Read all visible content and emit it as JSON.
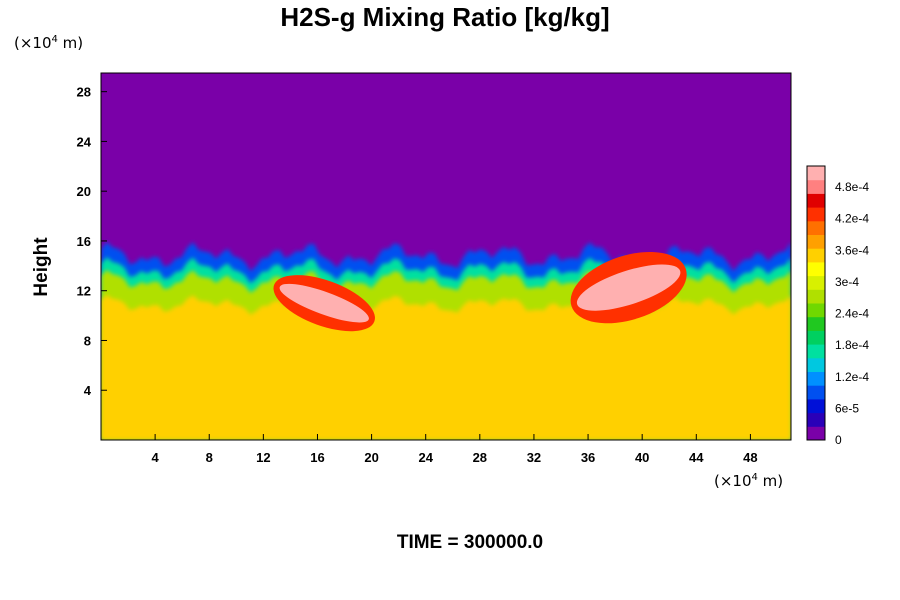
{
  "chart_data": {
    "type": "heatmap",
    "title": "H2S-g Mixing Ratio [kg/kg]",
    "ylabel": "Height",
    "y_unit_prefix": "(×10",
    "y_unit_exp": "4",
    "y_unit_suffix": " m)",
    "x_unit_prefix": "(×10",
    "x_unit_exp": "4",
    "x_unit_suffix": " m)",
    "x_ticks": [
      4,
      8,
      12,
      16,
      20,
      24,
      28,
      32,
      36,
      40,
      44,
      48
    ],
    "y_ticks": [
      4,
      8,
      12,
      16,
      20,
      24,
      28
    ],
    "xlim": [
      0,
      51
    ],
    "ylim": [
      0,
      29.5
    ],
    "time_label": "TIME = 300000.0",
    "colorbar": {
      "ticks": [
        {
          "label": "0",
          "value": 0
        },
        {
          "label": "6e-5",
          "value": 6e-05
        },
        {
          "label": "1.2e-4",
          "value": 0.00012
        },
        {
          "label": "1.8e-4",
          "value": 0.00018
        },
        {
          "label": "2.4e-4",
          "value": 0.00024
        },
        {
          "label": "3e-4",
          "value": 0.0003
        },
        {
          "label": "3.6e-4",
          "value": 0.00036
        },
        {
          "label": "4.2e-4",
          "value": 0.00042
        },
        {
          "label": "4.8e-4",
          "value": 0.00048
        }
      ],
      "max": 0.00052,
      "colors": [
        "#7a00a8",
        "#2a00b8",
        "#0010d8",
        "#0050f0",
        "#0090ff",
        "#00c8e0",
        "#00e0a0",
        "#00d060",
        "#20c820",
        "#70d800",
        "#b0e000",
        "#d8f000",
        "#ffff00",
        "#ffd000",
        "#ffa000",
        "#ff7000",
        "#ff3000",
        "#e00000",
        "#ff8080",
        "#ffb0b0"
      ]
    },
    "regions": {
      "upper_value": 0,
      "lower_value": 0.00035,
      "boundary_height_approx": 12.5,
      "high_plumes": [
        {
          "x_range": [
            13,
            20
          ],
          "y_range": [
            9.5,
            12.5
          ],
          "value": 0.00052
        },
        {
          "x_range": [
            35,
            43
          ],
          "y_range": [
            10,
            14.5
          ],
          "value": 0.00052
        }
      ]
    }
  }
}
